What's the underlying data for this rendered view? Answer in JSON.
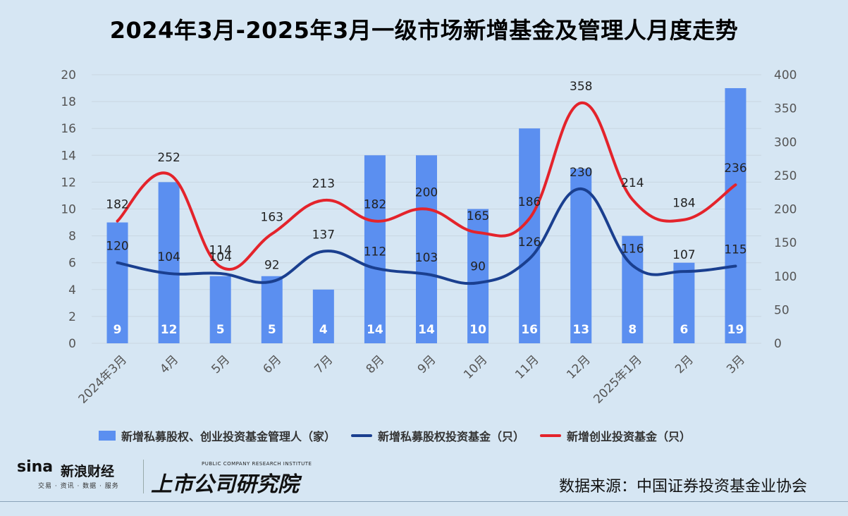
{
  "title": "2024年3月-2025年3月一级市场新增基金及管理人月度走势",
  "source": "数据来源：中国证券投资基金业协会",
  "logos": {
    "sina_word": "sina",
    "sina_brand": "新浪财经",
    "sina_sub": "交易 · 资讯 · 数据 · 服务",
    "institute_en": "PUBLIC COMPANY RESEARCH INSTITUTE",
    "institute_cn": "上市公司研究院"
  },
  "colors": {
    "bar": "#5b8ff0",
    "line_pe": "#1a3f8f",
    "line_vc": "#e4232b",
    "grid": "#c9d6e2",
    "axis_text": "#555555"
  },
  "chart_data": {
    "type": "bar",
    "categories": [
      "2024年3月",
      "4月",
      "5月",
      "6月",
      "7月",
      "8月",
      "9月",
      "10月",
      "11月",
      "12月",
      "2025年1月",
      "2月",
      "3月"
    ],
    "left_axis": {
      "min": 0,
      "max": 20,
      "step": 2,
      "ticks": [
        "0",
        "2",
        "4",
        "6",
        "8",
        "10",
        "12",
        "14",
        "16",
        "18",
        "20"
      ]
    },
    "right_axis": {
      "min": 0,
      "max": 400,
      "step": 50,
      "ticks": [
        "0",
        "50",
        "100",
        "150",
        "200",
        "250",
        "300",
        "350",
        "400"
      ]
    },
    "grid": true,
    "legend_position": "bottom",
    "series": [
      {
        "name": "新增私募股权、创业投资基金管理人（家）",
        "type": "bar",
        "axis": "left",
        "values": [
          9,
          12,
          5,
          5,
          4,
          14,
          14,
          10,
          16,
          13,
          8,
          6,
          19
        ]
      },
      {
        "name": "新增私募股权投资基金（只）",
        "type": "line",
        "axis": "right",
        "values": [
          120,
          104,
          104,
          92,
          137,
          112,
          103,
          90,
          126,
          230,
          116,
          107,
          115
        ]
      },
      {
        "name": "新增创业投资基金（只）",
        "type": "line",
        "axis": "right",
        "values": [
          182,
          252,
          114,
          163,
          213,
          182,
          200,
          165,
          186,
          358,
          214,
          184,
          236
        ]
      }
    ]
  }
}
